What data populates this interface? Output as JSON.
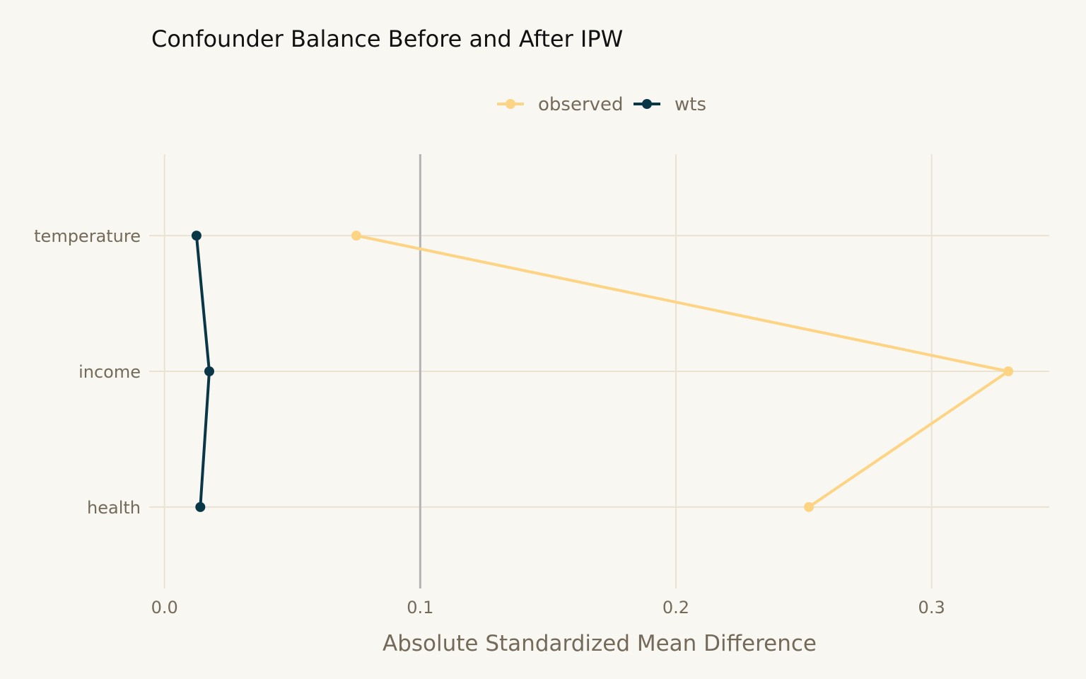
{
  "chart_data": {
    "type": "line",
    "title": "Confounder Balance Before and After IPW",
    "xlabel": "Absolute Standardized Mean Difference",
    "ylabel": "",
    "categories": [
      "health",
      "income",
      "temperature"
    ],
    "xlim": [
      -0.006,
      0.346
    ],
    "x_ticks": [
      0.0,
      0.1,
      0.2,
      0.3
    ],
    "x_tick_labels": [
      "0.0",
      "0.1",
      "0.2",
      "0.3"
    ],
    "reference_line": 0.1,
    "grid": true,
    "legend_position": "top",
    "series": [
      {
        "name": "observed",
        "color": "#fdd484",
        "points": [
          {
            "category": "temperature",
            "value": 0.075
          },
          {
            "category": "income",
            "value": 0.33
          },
          {
            "category": "health",
            "value": 0.252
          }
        ]
      },
      {
        "name": "wts",
        "color": "#0a3747",
        "points": [
          {
            "category": "temperature",
            "value": 0.0125
          },
          {
            "category": "income",
            "value": 0.0175
          },
          {
            "category": "health",
            "value": 0.014
          }
        ]
      }
    ],
    "colors": {
      "background": "#f9f7f2",
      "grid": "#ebe2d2",
      "reference_line": "#b3b3b3"
    }
  }
}
